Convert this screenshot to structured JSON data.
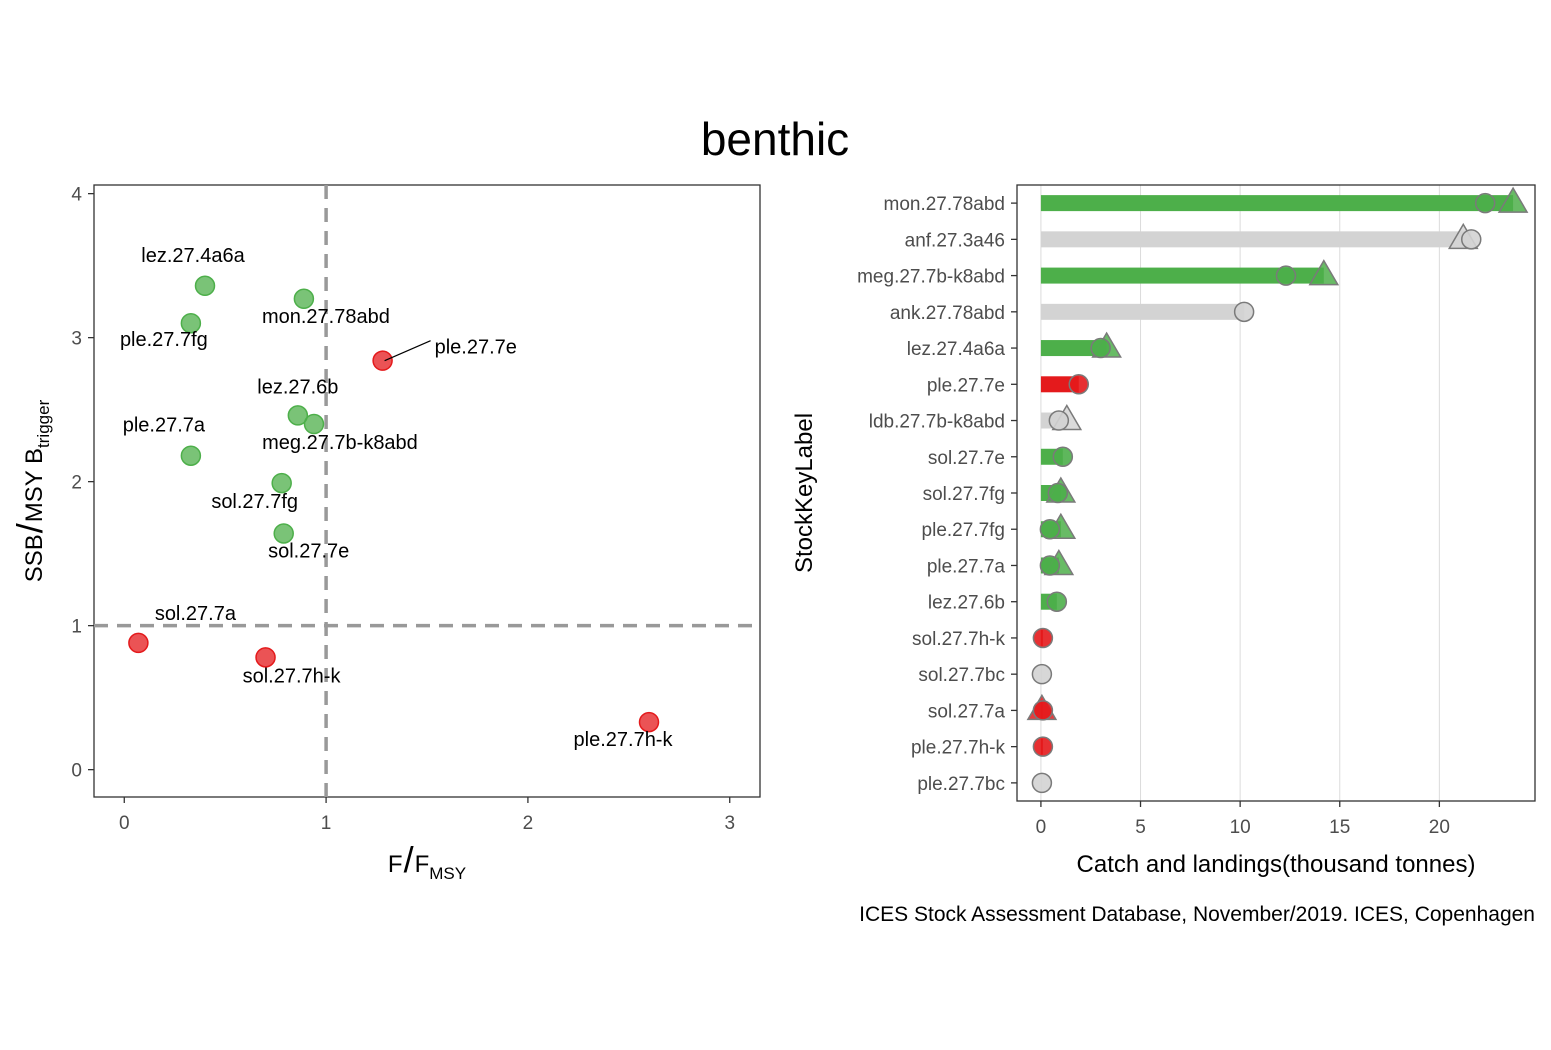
{
  "title": "benthic",
  "caption": "ICES Stock Assessment Database, November/2019. ICES, Copenhagen",
  "colors": {
    "green": "#4daf4a",
    "red": "#e41a1c",
    "grey": "#d3d3d3",
    "ref_line": "#999999"
  },
  "chart_data": [
    {
      "type": "scatter",
      "title": "",
      "xlabel": {
        "main": "F",
        "sub": "F",
        "sub_index": "MSY"
      },
      "ylabel": {
        "main": "SSB",
        "sub": "MSY B",
        "sub_index": "trigger"
      },
      "xlim": [
        -0.15,
        3.15
      ],
      "ylim": [
        -0.19,
        4.06
      ],
      "xticks": [
        0,
        1,
        2,
        3
      ],
      "yticks": [
        0,
        1,
        2,
        3,
        4
      ],
      "reference_lines": {
        "x": 1,
        "y": 1
      },
      "grid": false,
      "points": [
        {
          "label": "lez.27.4a6a",
          "x": 0.4,
          "y": 3.36,
          "status": "green"
        },
        {
          "label": "mon.27.78abd",
          "x": 0.89,
          "y": 3.27,
          "status": "green"
        },
        {
          "label": "ple.27.7fg",
          "x": 0.33,
          "y": 3.1,
          "status": "green"
        },
        {
          "label": "ple.27.7e",
          "x": 1.28,
          "y": 2.84,
          "status": "red"
        },
        {
          "label": "lez.27.6b",
          "x": 0.86,
          "y": 2.46,
          "status": "green"
        },
        {
          "label": "meg.27.7b-k8abd",
          "x": 0.94,
          "y": 2.4,
          "status": "green"
        },
        {
          "label": "ple.27.7a",
          "x": 0.33,
          "y": 2.18,
          "status": "green"
        },
        {
          "label": "sol.27.7fg",
          "x": 0.78,
          "y": 1.99,
          "status": "green"
        },
        {
          "label": "sol.27.7e",
          "x": 0.79,
          "y": 1.64,
          "status": "green"
        },
        {
          "label": "sol.27.7a",
          "x": 0.07,
          "y": 0.88,
          "status": "red"
        },
        {
          "label": "sol.27.7h-k",
          "x": 0.7,
          "y": 0.78,
          "status": "red"
        },
        {
          "label": "ple.27.7h-k",
          "x": 2.6,
          "y": 0.33,
          "status": "red"
        }
      ]
    },
    {
      "type": "bar",
      "orientation": "horizontal",
      "title": "",
      "xlabel": "Catch and landings(thousand tonnes)",
      "ylabel": "StockKeyLabel",
      "xlim": [
        -1.2,
        24.8
      ],
      "xticks": [
        0,
        5,
        10,
        15,
        20
      ],
      "grid": "vertical",
      "legend": "none",
      "categories": [
        "mon.27.78abd",
        "anf.27.3a46",
        "meg.27.7b-k8abd",
        "ank.27.78abd",
        "lez.27.4a6a",
        "ple.27.7e",
        "ldb.27.7b-k8abd",
        "sol.27.7e",
        "sol.27.7fg",
        "ple.27.7fg",
        "ple.27.7a",
        "lez.27.6b",
        "sol.27.7h-k",
        "sol.27.7bc",
        "sol.27.7a",
        "ple.27.7h-k",
        "ple.27.7bc"
      ],
      "series": [
        {
          "name": "",
          "marker": "circle",
          "values": [
            22.3,
            21.6,
            12.3,
            10.2,
            3.0,
            1.9,
            0.9,
            1.1,
            0.85,
            0.45,
            0.45,
            0.8,
            0.1,
            0.05,
            0.1,
            0.1,
            0.05
          ]
        },
        {
          "name": "",
          "marker": "triangle",
          "values": [
            23.7,
            21.2,
            14.2,
            null,
            3.3,
            null,
            1.3,
            null,
            1.0,
            1.0,
            0.9,
            null,
            null,
            null,
            0.05,
            null,
            null
          ]
        }
      ],
      "status": [
        "green",
        "grey",
        "green",
        "grey",
        "green",
        "red",
        "grey",
        "green",
        "green",
        "green",
        "green",
        "green",
        "red",
        "grey",
        "red",
        "red",
        "grey"
      ]
    }
  ]
}
